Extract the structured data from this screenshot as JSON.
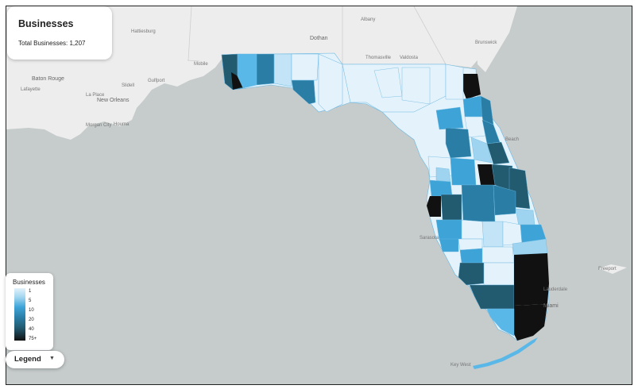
{
  "info_card": {
    "title": "Businesses",
    "total_label": "Total Businesses: 1,207"
  },
  "legend": {
    "title": "Businesses",
    "ticks": [
      "1",
      "5",
      "10",
      "20",
      "40",
      "75+"
    ],
    "colors": [
      "#e3f2fb",
      "#9ed4ef",
      "#3ea4d8",
      "#2a7ea6",
      "#225a70",
      "#111111"
    ]
  },
  "legend_button": {
    "label": "Legend",
    "icon": "caret-down-icon"
  },
  "map": {
    "land_color": "#ededed",
    "water_color": "#c6cbcb",
    "state": "Florida",
    "places": [
      {
        "id": "hattiesburg",
        "name": "Hattiesburg"
      },
      {
        "id": "albany",
        "name": "Albany"
      },
      {
        "id": "dothan",
        "name": "Dothan"
      },
      {
        "id": "brunswick",
        "name": "Brunswick"
      },
      {
        "id": "mobile",
        "name": "Mobile"
      },
      {
        "id": "thomasville",
        "name": "Thomasville"
      },
      {
        "id": "valdosta",
        "name": "Valdosta"
      },
      {
        "id": "baton-rouge",
        "name": "Baton Rouge"
      },
      {
        "id": "gulfport",
        "name": "Gulfport"
      },
      {
        "id": "lafayette",
        "name": "Lafayette"
      },
      {
        "id": "new-orleans",
        "name": "New Orleans"
      },
      {
        "id": "slidell",
        "name": "Slidell"
      },
      {
        "id": "houma",
        "name": "Houma"
      },
      {
        "id": "la-place",
        "name": "La Place"
      },
      {
        "id": "morgan-city",
        "name": "Morgan City"
      },
      {
        "id": "beach",
        "name": "Beach"
      },
      {
        "id": "miami",
        "name": "Miami"
      },
      {
        "id": "key-west",
        "name": "Key West"
      },
      {
        "id": "freeport",
        "name": "Freeport"
      },
      {
        "id": "lauderdale",
        "name": "Lauderdale"
      },
      {
        "id": "sarasota",
        "name": "Sarasota"
      }
    ]
  }
}
